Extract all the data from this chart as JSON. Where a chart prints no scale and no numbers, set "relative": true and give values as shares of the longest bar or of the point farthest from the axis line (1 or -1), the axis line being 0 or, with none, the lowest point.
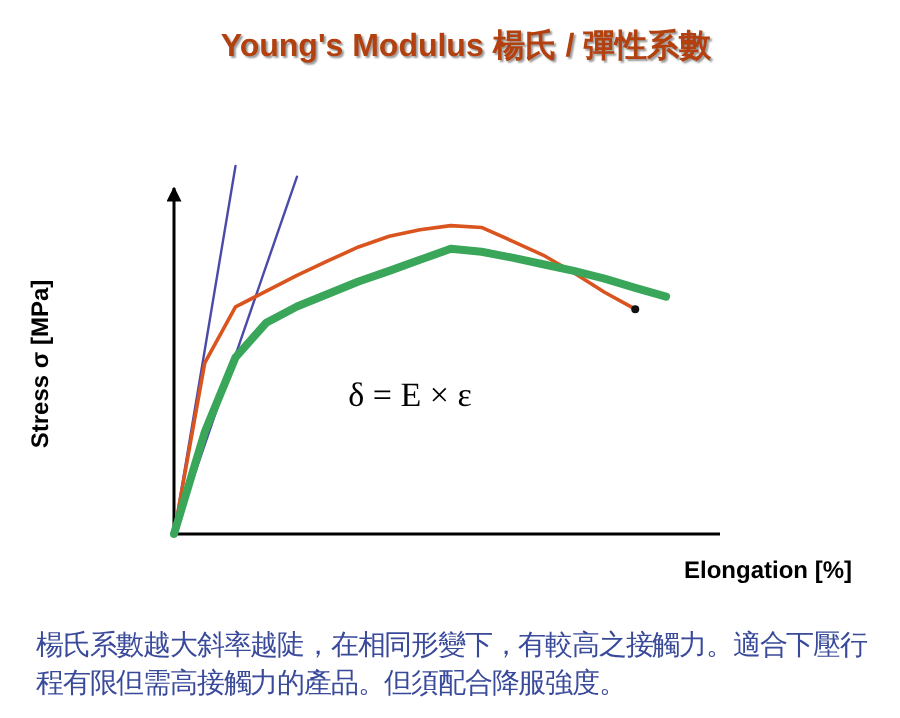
{
  "chart_data": {
    "type": "line",
    "relative": true,
    "title": "Young's Modulus  楊氏 / 彈性系數",
    "xlabel": "Elongation [%]",
    "ylabel": "Stress σ [MPa]",
    "categories": [
      null,
      null,
      null,
      null,
      null,
      null,
      null,
      null,
      null,
      null,
      null,
      null,
      null,
      null,
      null,
      null,
      null
    ],
    "series": [
      {
        "color": "#4a4aa8",
        "values": [
          0,
          0.5,
          1,
          null,
          null,
          null,
          null,
          null,
          null,
          null,
          null,
          null,
          null,
          null,
          null,
          null,
          null
        ]
      },
      {
        "color": "#4a4aa8",
        "values": [
          0,
          0.243,
          0.486,
          0.729,
          0.971,
          null,
          null,
          null,
          null,
          null,
          null,
          null,
          null,
          null,
          null,
          null,
          null
        ]
      },
      {
        "color": "#d9541e",
        "values": [
          0,
          0.465,
          0.617,
          0.66,
          0.703,
          0.742,
          0.78,
          0.809,
          0.827,
          0.838,
          0.833,
          0.796,
          0.758,
          0.71,
          0.657,
          0.611,
          null
        ]
      },
      {
        "color": "#3aa65a",
        "values": [
          0,
          0.277,
          0.48,
          0.574,
          0.618,
          0.652,
          0.686,
          0.715,
          0.745,
          0.775,
          0.767,
          0.751,
          0.733,
          0.715,
          0.694,
          0.669,
          0.645
        ]
      }
    ],
    "annotations": [
      "δ = E × ε",
      "楊氏系數越大斜率越陡，在相同形變下，有較高之接觸力。適合下壓行程有限但需高接觸力的產品。但須配合降服強度。"
    ]
  }
}
